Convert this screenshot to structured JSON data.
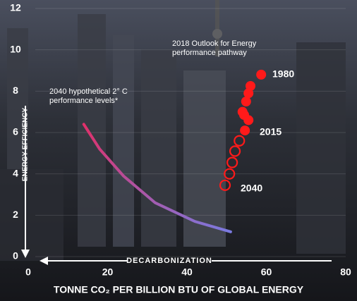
{
  "chart_data": {
    "type": "scatter",
    "x_label": "TONNE CO₂ PER BILLION BTU OF GLOBAL ENERGY",
    "y_label": "ENERGY EFFICIENCY",
    "x_arrow_label": "DECARBONIZATION",
    "xlim": [
      0,
      80
    ],
    "xticks": [
      0,
      20,
      40,
      60,
      80
    ],
    "ylim": [
      0,
      12
    ],
    "yticks": [
      0,
      2,
      4,
      6,
      8,
      10,
      12
    ],
    "grid": true,
    "series": [
      {
        "name": "2018 Outlook for Energy performance pathway",
        "color": "#ff1a1a",
        "x": [
          58.7,
          56.0,
          55.5,
          54.9,
          54.0,
          54.4,
          55.5,
          54.6,
          53.2,
          52.1,
          51.4,
          50.7,
          49.6
        ],
        "values": [
          8.8,
          8.25,
          7.9,
          7.5,
          7.0,
          6.85,
          6.6,
          6.1,
          5.6,
          5.1,
          4.55,
          4.0,
          3.45
        ],
        "filled": [
          true,
          true,
          true,
          true,
          true,
          true,
          true,
          true,
          false,
          false,
          false,
          false,
          false
        ]
      },
      {
        "name": "2040 hypothetical 2° C performance levels*",
        "color": "#e0306a",
        "color_end": "#7a7ae0",
        "line": true,
        "x": [
          14,
          18,
          24,
          32,
          42,
          51
        ],
        "values": [
          6.4,
          5.2,
          3.9,
          2.6,
          1.7,
          1.2
        ]
      }
    ],
    "annotations": [
      "1980",
      "2015",
      "2040"
    ]
  }
}
